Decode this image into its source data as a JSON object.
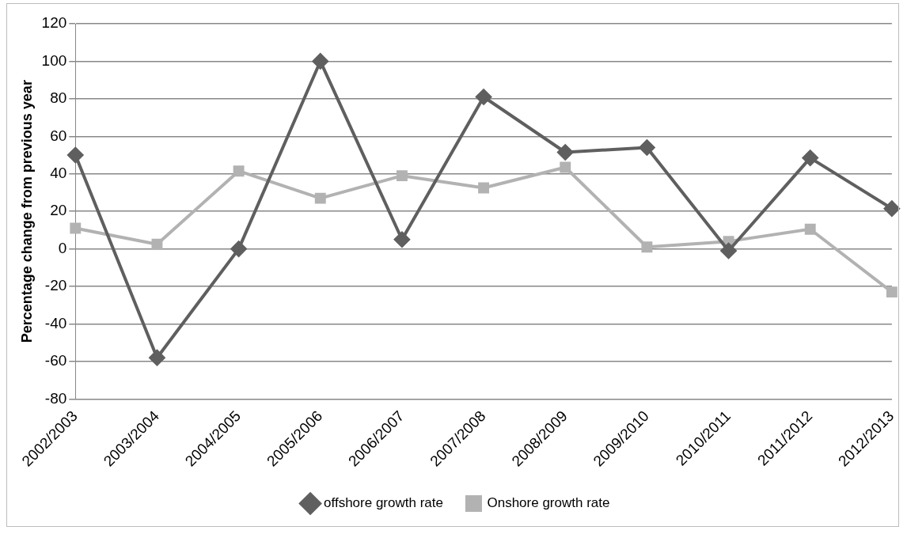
{
  "chart_data": {
    "type": "line",
    "ylabel": "Percentage change from previous year",
    "categories": [
      "2002/2003",
      "2003/2004",
      "2004/2005",
      "2005/2006",
      "2006/2007",
      "2007/2008",
      "2008/2009",
      "2009/2010",
      "2010/2011",
      "2011/2012",
      "2012/2013"
    ],
    "series": [
      {
        "name": "offshore growth rate",
        "color": "#5f5f5f",
        "marker": "diamond",
        "values": [
          50,
          -58,
          0,
          100,
          5,
          81,
          51.5,
          54,
          -1,
          48.5,
          21.5
        ]
      },
      {
        "name": "Onshore growth rate",
        "color": "#b2b2b2",
        "marker": "square",
        "values": [
          11,
          2.5,
          41.5,
          27,
          39,
          32.5,
          43.5,
          1,
          4,
          10.5,
          -23
        ]
      }
    ],
    "ylim": [
      -80,
      120
    ],
    "yticks": [
      -80,
      -60,
      -40,
      -20,
      0,
      20,
      40,
      60,
      80,
      100,
      120
    ],
    "grid": "y",
    "legend": "bottom"
  }
}
